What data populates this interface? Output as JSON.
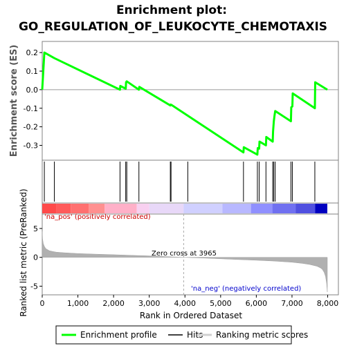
{
  "title_line1": "Enrichment plot:",
  "title_line2": "GO_REGULATION_OF_LEUKOCYTE_CHEMOTAXIS",
  "chart_data": [
    {
      "type": "line",
      "name": "enrichment-profile",
      "ylabel": "Enrichment score (ES)",
      "xlim": [
        0,
        8300
      ],
      "ylim": [
        -0.38,
        0.26
      ],
      "yticks": [
        "-0.3",
        "-0.2",
        "-0.1",
        "0.0",
        "0.1",
        "0.2"
      ],
      "ytick_values": [
        -0.3,
        -0.2,
        -0.1,
        0.0,
        0.1,
        0.2
      ],
      "zero_line": true,
      "color": "#00ff00",
      "x": [
        0,
        60,
        340,
        2180,
        2190,
        2340,
        2350,
        2370,
        2710,
        2720,
        3590,
        3600,
        3610,
        3620,
        5640,
        5650,
        6030,
        6040,
        6080,
        6090,
        6270,
        6280,
        6460,
        6470,
        6490,
        6510,
        6530,
        6970,
        6980,
        7010,
        7020,
        7640,
        7650,
        7990
      ],
      "y": [
        0.0,
        0.2,
        0.17,
        0.0,
        0.02,
        0.005,
        0.04,
        0.045,
        0.0,
        0.015,
        -0.085,
        -0.08,
        -0.083,
        -0.082,
        -0.338,
        -0.31,
        -0.35,
        -0.315,
        -0.318,
        -0.28,
        -0.3,
        -0.255,
        -0.28,
        -0.225,
        -0.17,
        -0.14,
        -0.115,
        -0.17,
        -0.095,
        -0.09,
        -0.02,
        -0.1,
        0.04,
        0.0
      ]
    },
    {
      "type": "scatter",
      "name": "hits",
      "xlim": [
        0,
        8300
      ],
      "x": [
        60,
        340,
        2180,
        2340,
        2370,
        2710,
        3590,
        3610,
        4080,
        5640,
        6030,
        6080,
        6270,
        6460,
        6490,
        6530,
        6970,
        7010,
        7640
      ]
    },
    {
      "type": "area",
      "name": "ranked-list-metric",
      "ylabel": "Ranked list metric (PreRanked)",
      "xlabel": "Rank in Ordered Dataset",
      "xlim": [
        0,
        8300
      ],
      "ylim": [
        -6.5,
        7.5
      ],
      "yticks": [
        "-5",
        "0",
        "5"
      ],
      "ytick_values": [
        -5,
        0,
        5
      ],
      "xticks": [
        "0",
        "1,000",
        "2,000",
        "3,000",
        "4,000",
        "5,000",
        "6,000",
        "7,000",
        "8,000"
      ],
      "xtick_values": [
        0,
        1000,
        2000,
        3000,
        4000,
        5000,
        6000,
        7000,
        8000
      ],
      "x": [
        0,
        10,
        30,
        60,
        100,
        200,
        300,
        400,
        600,
        1000,
        1500,
        2000,
        2500,
        3000,
        3500,
        3965,
        4500,
        5000,
        5500,
        6000,
        6500,
        7000,
        7300,
        7500,
        7700,
        7800,
        7850,
        7900,
        7940,
        7970,
        7990
      ],
      "y": [
        4.5,
        3.2,
        2.4,
        1.9,
        1.5,
        1.15,
        1.0,
        0.9,
        0.8,
        0.65,
        0.55,
        0.45,
        0.35,
        0.25,
        0.12,
        0.0,
        -0.12,
        -0.25,
        -0.38,
        -0.5,
        -0.65,
        -0.85,
        -1.05,
        -1.25,
        -1.55,
        -1.85,
        -2.1,
        -2.6,
        -3.3,
        -4.5,
        -6.0
      ],
      "annotations": [
        "'na_pos' (positively correlated)",
        "Zero cross at 3965",
        "'na_neg' (negatively correlated)"
      ],
      "zero_cross": 3965
    }
  ],
  "legend": {
    "items": [
      "Enrichment profile",
      "Hits",
      "Ranking metric scores"
    ],
    "colors": [
      "#00ff00",
      "#000000",
      "#d0d0d0"
    ]
  }
}
